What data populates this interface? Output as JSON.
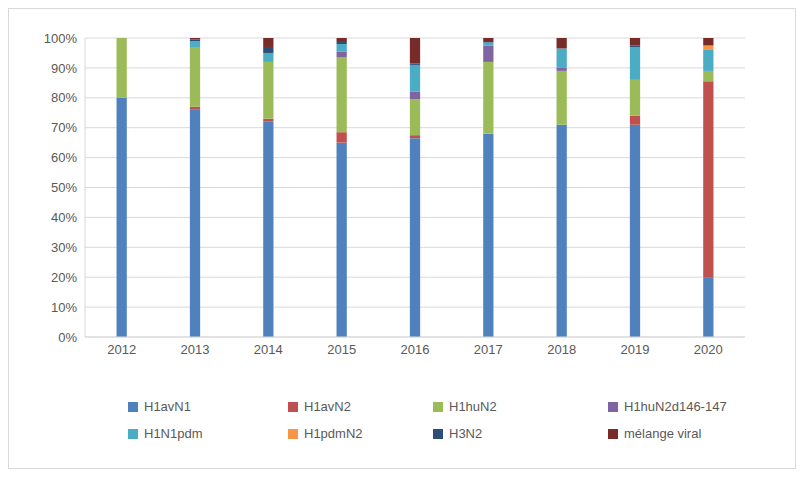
{
  "chart_data": {
    "type": "bar",
    "stacked": true,
    "grid": true,
    "legend": "bottom",
    "categories": [
      "2012",
      "2013",
      "2014",
      "2015",
      "2016",
      "2017",
      "2018",
      "2019",
      "2020"
    ],
    "ylim": [
      0,
      100
    ],
    "yticks": [
      {
        "value": 0,
        "label": "0%"
      },
      {
        "value": 10,
        "label": "10%"
      },
      {
        "value": 20,
        "label": "20%"
      },
      {
        "value": 30,
        "label": "30%"
      },
      {
        "value": 40,
        "label": "40%"
      },
      {
        "value": 50,
        "label": "50%"
      },
      {
        "value": 60,
        "label": "60%"
      },
      {
        "value": 70,
        "label": "70%"
      },
      {
        "value": 80,
        "label": "80%"
      },
      {
        "value": 90,
        "label": "90%"
      },
      {
        "value": 100,
        "label": "100%"
      }
    ],
    "series": [
      {
        "name": "H1avN1",
        "color": "#4f81bd",
        "values": [
          80,
          76,
          72,
          65,
          66.5,
          68,
          71,
          71,
          20
        ]
      },
      {
        "name": "H1avN2",
        "color": "#c0504d",
        "values": [
          0,
          1,
          1,
          3.5,
          1,
          0,
          0,
          3,
          65.5
        ]
      },
      {
        "name": "H1huN2",
        "color": "#9bbb59",
        "values": [
          20,
          20,
          19,
          25,
          12,
          24,
          18,
          12,
          3.5
        ]
      },
      {
        "name": "H1huN2d146-147",
        "color": "#8064a2",
        "values": [
          0,
          0,
          0,
          2,
          2.5,
          5.5,
          1,
          0,
          0
        ]
      },
      {
        "name": "H1N1pdm",
        "color": "#4bacc6",
        "values": [
          0,
          2,
          3,
          2.5,
          9,
          1,
          6.5,
          11,
          7
        ]
      },
      {
        "name": "H1pdmN2",
        "color": "#f79646",
        "values": [
          0,
          0,
          0,
          0,
          0,
          0,
          0,
          0,
          1.5
        ]
      },
      {
        "name": "H3N2",
        "color": "#2c4d75",
        "values": [
          0,
          0.5,
          2,
          1,
          0.5,
          0.5,
          0,
          0.5,
          0
        ]
      },
      {
        "name": "mélange viral",
        "color": "#772c2a",
        "values": [
          0,
          0.5,
          3,
          1,
          8.5,
          1,
          3.5,
          2.5,
          2.5
        ]
      }
    ]
  }
}
